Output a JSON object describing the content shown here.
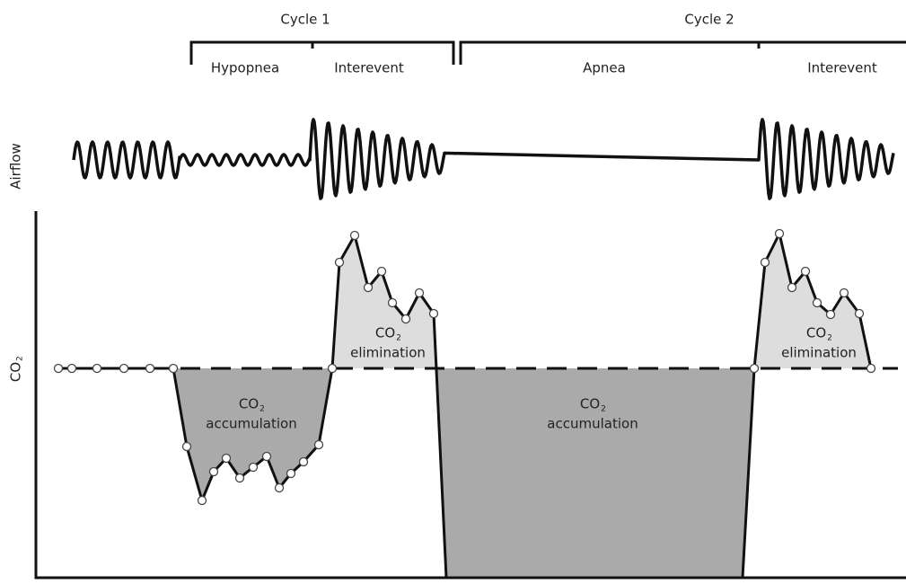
{
  "header": {
    "cycles": [
      "Cycle 1",
      "Cycle 2"
    ],
    "phases": [
      "Hypopnea",
      "Interevent",
      "Apnea",
      "Interevent"
    ]
  },
  "axes": {
    "top": "Airflow",
    "bottom": {
      "chem": "CO",
      "sub": "2"
    }
  },
  "regions": [
    {
      "chem": "CO",
      "sub": "2",
      "label": "accumulation"
    },
    {
      "chem": "CO",
      "sub": "2",
      "label": "elimination"
    },
    {
      "chem": "CO",
      "sub": "2",
      "label": "accumulation"
    },
    {
      "chem": "CO",
      "sub": "2",
      "label": "elimination"
    }
  ]
}
